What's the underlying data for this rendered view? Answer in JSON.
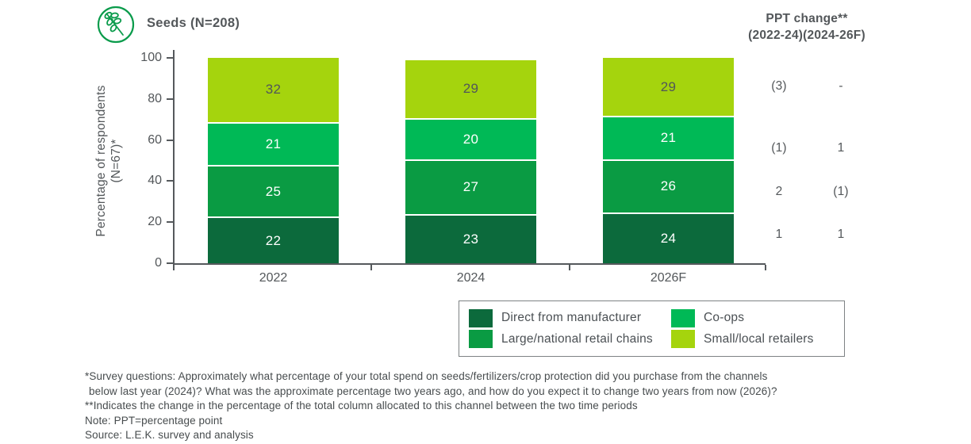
{
  "header": {
    "icon": "seedling-branch-icon",
    "title": "Seeds (N=208)"
  },
  "ppt_header": {
    "line1": "PPT change**",
    "line2": "(2022-24)(2024-26F)"
  },
  "chart_data": {
    "type": "bar",
    "stacked": true,
    "title": "Seeds (N=208)",
    "categories": [
      "2022",
      "2024",
      "2026F"
    ],
    "series": [
      {
        "name": "Direct from manufacturer",
        "values": [
          22,
          23,
          24
        ],
        "color": "#0C6A3C",
        "label_color": "#FFFFFF",
        "ppt_change_2022_24": "1",
        "ppt_change_2024_26F": "1"
      },
      {
        "name": "Large/national retail chains",
        "values": [
          25,
          27,
          26
        ],
        "color": "#0A9B43",
        "label_color": "#FFFFFF",
        "ppt_change_2022_24": "2",
        "ppt_change_2024_26F": "(1)"
      },
      {
        "name": "Co-ops",
        "values": [
          21,
          20,
          21
        ],
        "color": "#00B956",
        "label_color": "#FFFFFF",
        "ppt_change_2022_24": "(1)",
        "ppt_change_2024_26F": "1"
      },
      {
        "name": "Small/local retailers",
        "values": [
          32,
          29,
          29
        ],
        "color": "#A5D40D",
        "label_color": "#51565A",
        "ppt_change_2022_24": "(3)",
        "ppt_change_2024_26F": "-"
      }
    ],
    "ylabel_line1": "Percentage of respondents",
    "ylabel_line2": "(N=67)*",
    "ylim": [
      0,
      100
    ],
    "yticks": [
      0,
      20,
      40,
      60,
      80,
      100
    ],
    "grid": false,
    "legend_position": "bottom-right"
  },
  "footnotes": [
    "*Survey questions: Approximately what percentage of your total spend on seeds/fertilizers/crop protection did you purchase from the channels",
    "below last year (2024)? What was the approximate percentage two years ago, and how do you expect it to change two years from now (2026)?",
    "**Indicates the change in the percentage of the total column allocated to this channel between the two time periods",
    "Note: PPT=percentage point",
    "Source: L.E.K. survey and analysis"
  ],
  "colors": {
    "axis": "#55595C",
    "text": "#53575A",
    "footnote_text": "#474C4E",
    "icon_green": "#0A9B4B",
    "legend_border": "#7E8284"
  }
}
